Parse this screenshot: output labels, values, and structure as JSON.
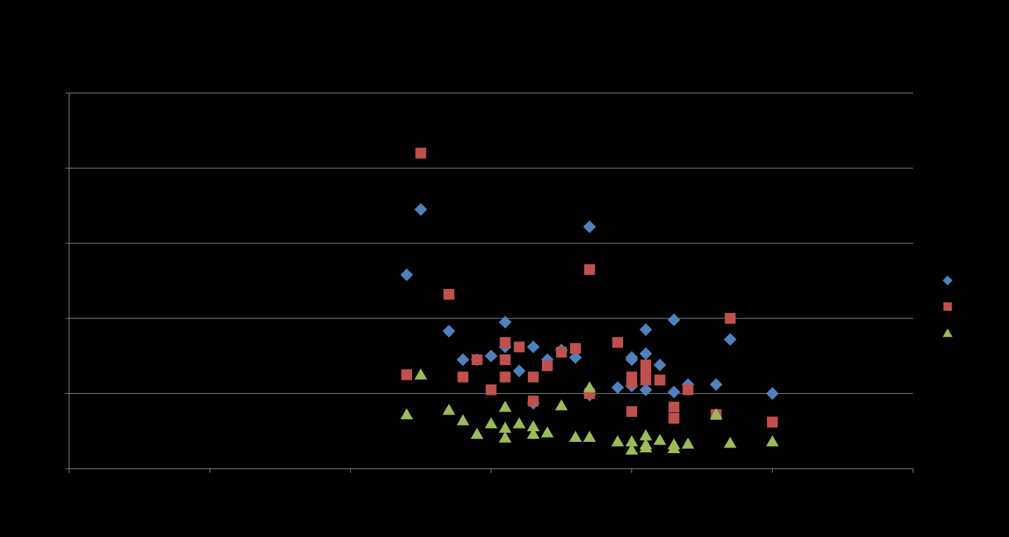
{
  "chart_data": {
    "type": "scatter",
    "title": "",
    "xlabel": "",
    "ylabel": "",
    "xlim": [
      0,
      12
    ],
    "ylim": [
      0,
      5
    ],
    "x_ticks": [
      0,
      2,
      4,
      6,
      8,
      10,
      12
    ],
    "y_ticks": [
      0,
      1,
      2,
      3,
      4,
      5
    ],
    "grid": true,
    "legend": "right",
    "series": [
      {
        "marker": "diamond",
        "color": "#4F81BD",
        "points": [
          [
            4.8,
            2.58
          ],
          [
            5.0,
            3.45
          ],
          [
            5.4,
            1.83
          ],
          [
            5.6,
            1.45
          ],
          [
            5.8,
            1.45
          ],
          [
            6.0,
            1.5
          ],
          [
            6.2,
            1.95
          ],
          [
            6.2,
            1.62
          ],
          [
            6.4,
            1.3
          ],
          [
            6.6,
            1.62
          ],
          [
            6.6,
            0.87
          ],
          [
            6.8,
            1.45
          ],
          [
            7.0,
            1.58
          ],
          [
            7.2,
            1.48
          ],
          [
            7.4,
            3.22
          ],
          [
            7.4,
            0.98
          ],
          [
            7.8,
            1.08
          ],
          [
            8.0,
            1.48
          ],
          [
            8.0,
            1.45
          ],
          [
            8.0,
            1.1
          ],
          [
            8.2,
            1.85
          ],
          [
            8.2,
            1.53
          ],
          [
            8.2,
            1.05
          ],
          [
            8.4,
            1.38
          ],
          [
            8.6,
            1.98
          ],
          [
            8.6,
            1.02
          ],
          [
            8.8,
            1.12
          ],
          [
            9.2,
            1.12
          ],
          [
            9.4,
            1.72
          ],
          [
            10.0,
            1.0
          ]
        ]
      },
      {
        "marker": "square",
        "color": "#C0504D",
        "points": [
          [
            4.8,
            1.25
          ],
          [
            5.0,
            4.2
          ],
          [
            5.4,
            2.32
          ],
          [
            5.6,
            1.22
          ],
          [
            5.8,
            1.45
          ],
          [
            6.0,
            1.05
          ],
          [
            6.2,
            1.68
          ],
          [
            6.2,
            1.45
          ],
          [
            6.2,
            1.22
          ],
          [
            6.4,
            1.62
          ],
          [
            6.6,
            1.22
          ],
          [
            6.6,
            0.9
          ],
          [
            6.8,
            1.37
          ],
          [
            7.0,
            1.55
          ],
          [
            7.2,
            1.6
          ],
          [
            7.4,
            2.65
          ],
          [
            7.4,
            1.0
          ],
          [
            7.8,
            1.68
          ],
          [
            8.0,
            1.22
          ],
          [
            8.0,
            1.15
          ],
          [
            8.0,
            0.76
          ],
          [
            8.2,
            1.38
          ],
          [
            8.2,
            1.28
          ],
          [
            8.2,
            1.18
          ],
          [
            8.4,
            1.18
          ],
          [
            8.6,
            0.82
          ],
          [
            8.6,
            0.67
          ],
          [
            8.8,
            1.05
          ],
          [
            9.2,
            0.72
          ],
          [
            9.4,
            2.0
          ],
          [
            10.0,
            0.62
          ]
        ]
      },
      {
        "marker": "triangle",
        "color": "#9BBB59",
        "points": [
          [
            4.8,
            0.72
          ],
          [
            5.0,
            1.25
          ],
          [
            5.4,
            0.78
          ],
          [
            5.6,
            0.64
          ],
          [
            5.8,
            0.46
          ],
          [
            6.0,
            0.6
          ],
          [
            6.2,
            0.82
          ],
          [
            6.2,
            0.54
          ],
          [
            6.2,
            0.41
          ],
          [
            6.4,
            0.6
          ],
          [
            6.6,
            0.56
          ],
          [
            6.6,
            0.46
          ],
          [
            6.8,
            0.48
          ],
          [
            7.0,
            0.84
          ],
          [
            7.2,
            0.42
          ],
          [
            7.4,
            1.08
          ],
          [
            7.4,
            0.42
          ],
          [
            7.8,
            0.36
          ],
          [
            8.0,
            0.36
          ],
          [
            8.0,
            0.25
          ],
          [
            8.2,
            0.44
          ],
          [
            8.2,
            0.32
          ],
          [
            8.2,
            0.28
          ],
          [
            8.4,
            0.38
          ],
          [
            8.6,
            0.32
          ],
          [
            8.6,
            0.27
          ],
          [
            8.8,
            0.33
          ],
          [
            9.2,
            0.72
          ],
          [
            9.4,
            0.34
          ],
          [
            10.0,
            0.36
          ]
        ]
      }
    ]
  }
}
